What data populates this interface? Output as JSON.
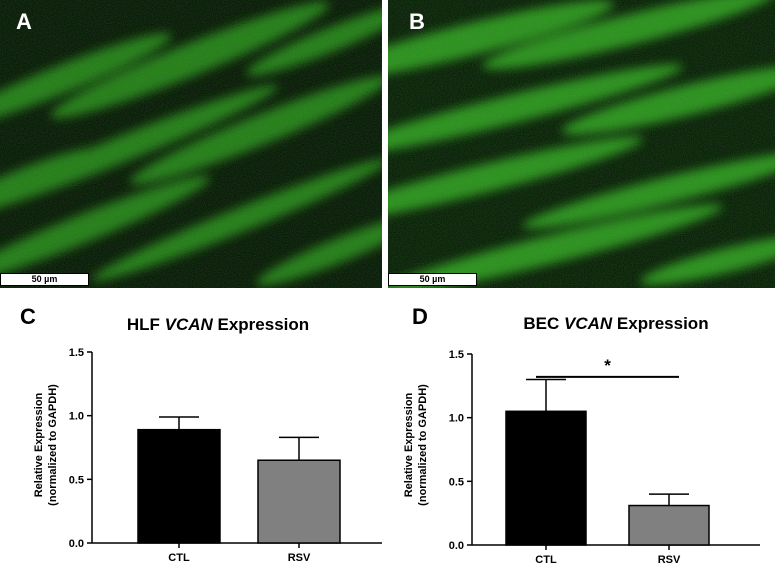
{
  "panels": [
    {
      "letter": "A",
      "scale_bar": "50 µm"
    },
    {
      "letter": "B",
      "scale_bar": "50 µm"
    },
    {
      "letter": "C"
    },
    {
      "letter": "D"
    }
  ],
  "colors": {
    "fluorescence": "#2f9a1e",
    "background": "#050a03",
    "ctl_bar": "#000000",
    "rsv_bar": "#808080"
  },
  "chart_data": [
    {
      "type": "bar",
      "title_prefix": "HLF ",
      "title_gene": "VCAN",
      "title_suffix": " Expression",
      "ylabel_line1": "Relative Expression",
      "ylabel_line2": "(normalized to GAPDH)",
      "categories": [
        "CTL",
        "RSV"
      ],
      "values": [
        0.89,
        0.65
      ],
      "errors": [
        0.1,
        0.18
      ],
      "colors": [
        "#000000",
        "#808080"
      ],
      "ylim": [
        0,
        1.5
      ],
      "yticks": [
        "0.0",
        "0.5",
        "1.0",
        "1.5"
      ],
      "significance": ""
    },
    {
      "type": "bar",
      "title_prefix": "BEC ",
      "title_gene": "VCAN",
      "title_suffix": " Expression",
      "ylabel_line1": "Relative Expression",
      "ylabel_line2": "(normalized to GAPDH)",
      "categories": [
        "CTL",
        "RSV"
      ],
      "values": [
        1.05,
        0.31
      ],
      "errors": [
        0.25,
        0.09
      ],
      "colors": [
        "#000000",
        "#808080"
      ],
      "ylim": [
        0,
        1.5
      ],
      "yticks": [
        "0.0",
        "0.5",
        "1.0",
        "1.5"
      ],
      "significance": "*"
    }
  ]
}
